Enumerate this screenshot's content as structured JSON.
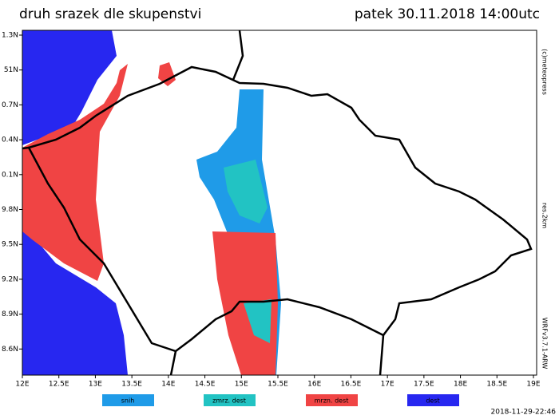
{
  "header": {
    "title": "druh srazek dle skupenstvi",
    "datetime": "patek 30.11.2018 14:00utc"
  },
  "axes": {
    "longitude_labels": [
      "12E",
      "12.5E",
      "13E",
      "13.5E",
      "14E",
      "14.5E",
      "15E",
      "15.5E",
      "16E",
      "16.5E",
      "17E",
      "17.5E",
      "18E",
      "18.5E",
      "19E"
    ],
    "latitude_labels": [
      "1.3N",
      "51N",
      "0.7N",
      "0.4N",
      "0.1N",
      "9.8N",
      "9.5N",
      "9.2N",
      "8.9N",
      "8.6N"
    ]
  },
  "side_notes": {
    "copyright": "(c)meteopress",
    "resolution": "res.2km",
    "model": "WRFv3.7.1-ARW"
  },
  "legend": [
    {
      "label": "snih",
      "color": "#1f9be8"
    },
    {
      "label": "zmrz. dest",
      "color": "#22c3c3"
    },
    {
      "label": "mrzn. dest",
      "color": "#f04444"
    },
    {
      "label": "dest",
      "color": "#2727f0"
    }
  ],
  "footer": {
    "timestamp": "2018-11-29-22:46"
  }
}
